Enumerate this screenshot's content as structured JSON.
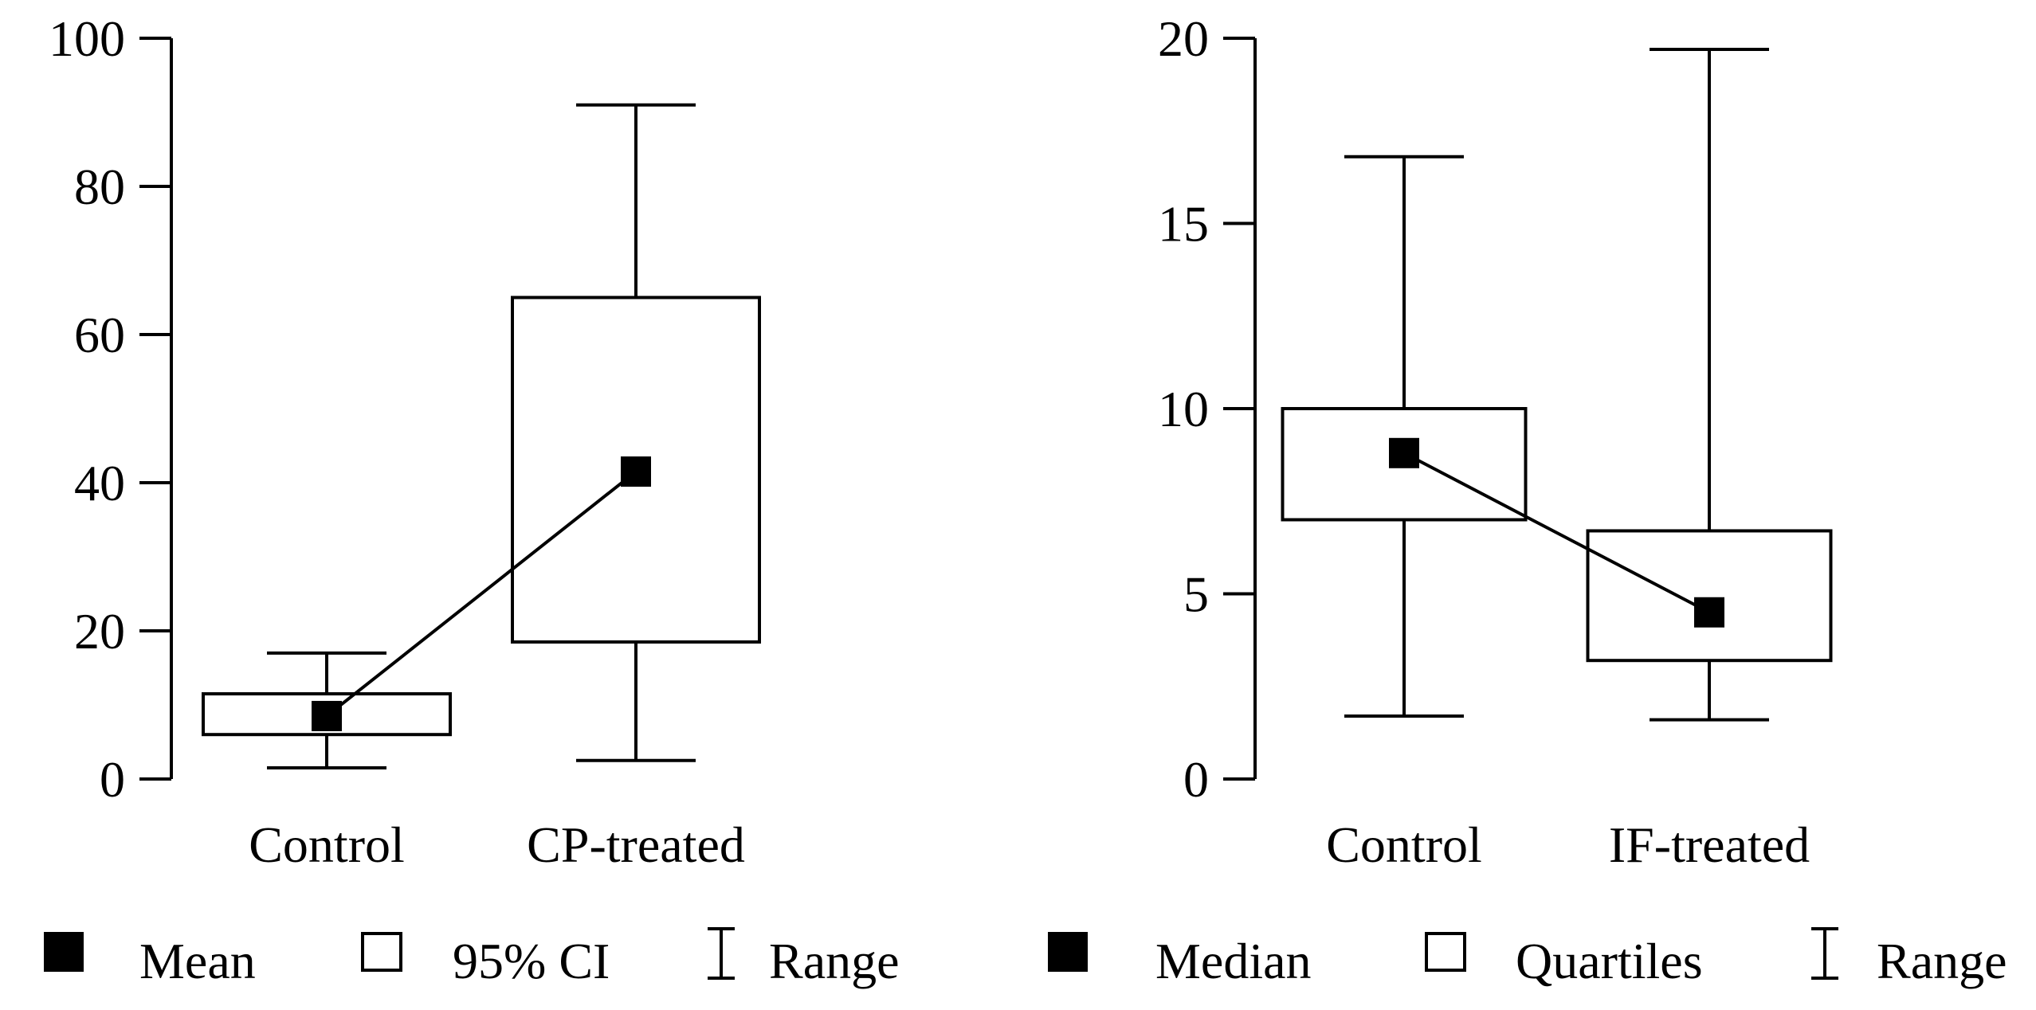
{
  "chart_data": [
    {
      "type": "box",
      "title": "",
      "xlabel": "",
      "ylabel": "",
      "ylim": [
        0,
        100
      ],
      "yticks": [
        0,
        20,
        40,
        60,
        80,
        100
      ],
      "categories": [
        "Control",
        "CP-treated"
      ],
      "series": [
        {
          "name": "Control",
          "range": [
            1.5,
            17
          ],
          "box": [
            6,
            11.5
          ],
          "center": 8.5
        },
        {
          "name": "CP-treated",
          "range": [
            2.5,
            91
          ],
          "box": [
            18.5,
            65
          ],
          "center": 41.5
        }
      ],
      "legend": {
        "center_label": "Mean",
        "box_label": "95% CI",
        "range_label": "Range"
      }
    },
    {
      "type": "box",
      "title": "",
      "xlabel": "",
      "ylabel": "",
      "ylim": [
        0,
        20
      ],
      "yticks": [
        0,
        5,
        10,
        15,
        20
      ],
      "categories": [
        "Control",
        "IF-treated"
      ],
      "series": [
        {
          "name": "Control",
          "range": [
            1.7,
            16.8
          ],
          "box": [
            7,
            10
          ],
          "center": 8.8
        },
        {
          "name": "IF-treated",
          "range": [
            1.6,
            19.7
          ],
          "box": [
            3.2,
            6.7
          ],
          "center": 4.5
        }
      ],
      "legend": {
        "center_label": "Median",
        "box_label": "Quartiles",
        "range_label": "Range"
      }
    }
  ]
}
